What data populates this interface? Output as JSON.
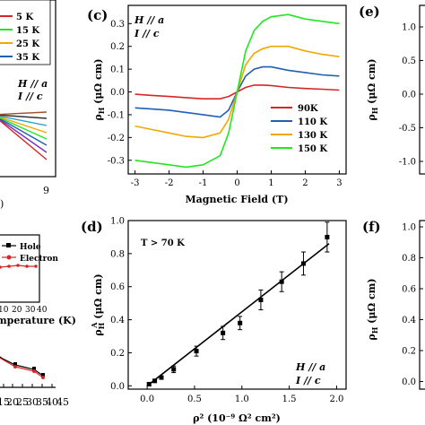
{
  "panels": {
    "c": {
      "label": "(c)",
      "ylabel": "ρ",
      "ylabel_sub": "H",
      "ylabel_unit": "(μΩ cm)",
      "xlabel": "Magnetic Field (T)",
      "field_dir": "H // a",
      "current_dir": "I // c"
    },
    "d": {
      "label": "(d)",
      "ylabel": "ρ",
      "ylabel_sub": "H",
      "ylabel_sup": "A",
      "ylabel_unit": "(μΩ cm)",
      "xlabel": "ρ² (10⁻⁹ Ω² cm²)",
      "condition": "T > 70 K",
      "field_dir": "H // a",
      "current_dir": "I //  c"
    },
    "e": {
      "label": "(e)",
      "ylabel": "ρ",
      "ylabel_sub": "H",
      "ylabel_unit": "(μΩ cm)",
      "yticks": [
        "1.0",
        "0.5",
        "0.0",
        "-0.5",
        "-1.0"
      ]
    },
    "f": {
      "label": "(f)",
      "ylabel": "ρ",
      "ylabel_sub": "H",
      "ylabel_unit": "(μΩ cm)",
      "yticks": [
        "1.0",
        "0.8",
        "0.6",
        "0.4",
        "0.2",
        "0.0"
      ]
    },
    "a": {
      "legend": [
        "5 K",
        "15 K",
        "25 K",
        "35 K"
      ],
      "field_dir": "H // a",
      "current_dir": "I // c",
      "xticks": [
        "9"
      ]
    },
    "b": {
      "legend": [
        "Hole",
        "Electron"
      ],
      "xlabel_fragment": "mperature (K)",
      "inset_xticks": [
        "10",
        "20",
        "30",
        "40"
      ],
      "xticks": [
        "0",
        "15",
        "20",
        "25",
        "30",
        "35",
        "40",
        "45"
      ]
    }
  },
  "chart_data": [
    {
      "panel": "c",
      "type": "line",
      "xlabel": "Magnetic Field (T)",
      "ylabel": "ρH (μΩ cm)",
      "xlim": [
        -3.2,
        3.2
      ],
      "ylim": [
        -0.36,
        0.38
      ],
      "xticks": [
        -3,
        -2,
        -1,
        0,
        1,
        2,
        3
      ],
      "yticks": [
        -0.3,
        -0.2,
        -0.1,
        0.0,
        0.1,
        0.2,
        0.3
      ],
      "series": [
        {
          "name": "90K",
          "color": "#d62728",
          "x": [
            -3,
            -2.5,
            -2,
            -1.5,
            -1,
            -0.5,
            -0.25,
            0,
            0.25,
            0.5,
            0.75,
            1,
            1.5,
            2,
            2.5,
            3
          ],
          "y": [
            -0.01,
            -0.015,
            -0.02,
            -0.025,
            -0.03,
            -0.03,
            -0.02,
            0.0,
            0.02,
            0.03,
            0.03,
            0.028,
            0.02,
            0.015,
            0.012,
            0.008
          ]
        },
        {
          "name": "110 K",
          "color": "#1f5fb4",
          "x": [
            -3,
            -2.5,
            -2,
            -1.5,
            -1,
            -0.5,
            -0.25,
            0,
            0.25,
            0.5,
            0.75,
            1,
            1.5,
            2,
            2.5,
            3
          ],
          "y": [
            -0.07,
            -0.075,
            -0.08,
            -0.09,
            -0.1,
            -0.11,
            -0.08,
            0.0,
            0.07,
            0.1,
            0.11,
            0.11,
            0.095,
            0.085,
            0.075,
            0.07
          ]
        },
        {
          "name": "130 K",
          "color": "#f0a800",
          "x": [
            -3,
            -2.5,
            -2,
            -1.5,
            -1,
            -0.5,
            -0.25,
            0,
            0.25,
            0.5,
            0.75,
            1,
            1.5,
            2,
            2.5,
            3
          ],
          "y": [
            -0.15,
            -0.165,
            -0.18,
            -0.195,
            -0.2,
            -0.18,
            -0.12,
            0.0,
            0.12,
            0.17,
            0.19,
            0.2,
            0.2,
            0.18,
            0.165,
            0.155
          ]
        },
        {
          "name": "150 K",
          "color": "#22e622",
          "x": [
            -3,
            -2.5,
            -2,
            -1.5,
            -1,
            -0.5,
            -0.25,
            0,
            0.25,
            0.5,
            0.75,
            1,
            1.5,
            2,
            2.5,
            3
          ],
          "y": [
            -0.3,
            -0.31,
            -0.32,
            -0.33,
            -0.32,
            -0.28,
            -0.18,
            0.0,
            0.18,
            0.27,
            0.31,
            0.33,
            0.34,
            0.32,
            0.31,
            0.3
          ]
        }
      ],
      "legend_position": "lower-right"
    },
    {
      "panel": "d",
      "type": "scatter",
      "xlabel": "ρ² (10⁻⁹ Ω² cm²)",
      "ylabel": "ρH (μΩ cm)",
      "xlim": [
        -0.2,
        2.1
      ],
      "ylim": [
        -0.02,
        1.0
      ],
      "xticks": [
        0.0,
        0.5,
        1.0,
        1.5,
        2.0
      ],
      "yticks": [
        0.0,
        0.2,
        0.4,
        0.6,
        0.8,
        1.0
      ],
      "points": {
        "x": [
          0.02,
          0.08,
          0.15,
          0.28,
          0.52,
          0.8,
          0.98,
          1.2,
          1.42,
          1.65,
          1.9
        ],
        "y": [
          0.01,
          0.03,
          0.05,
          0.1,
          0.21,
          0.32,
          0.38,
          0.52,
          0.63,
          0.74,
          0.9
        ],
        "err": [
          0.01,
          0.01,
          0.01,
          0.02,
          0.03,
          0.04,
          0.04,
          0.06,
          0.06,
          0.07,
          0.09
        ]
      },
      "fit_line": {
        "x": [
          0.0,
          1.92
        ],
        "y": [
          0.0,
          0.86
        ]
      }
    }
  ]
}
